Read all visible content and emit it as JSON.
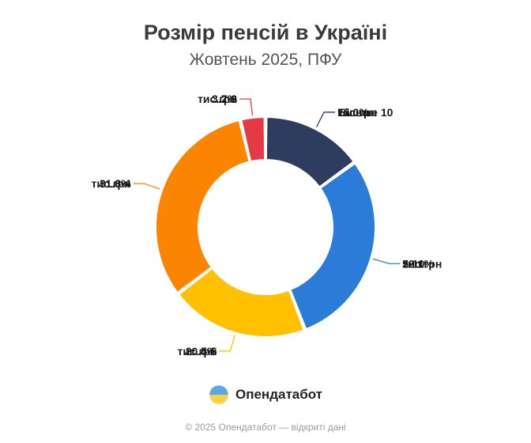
{
  "chart_data": {
    "type": "pie",
    "title": "Розмір пенсій в Україні",
    "subtitle": "Жовтень 2025, ПФУ",
    "slices": [
      {
        "label": "Більше 10",
        "value_label": "тис.грн",
        "percent": 15.0,
        "percent_label": "15.0%",
        "color": "#2e3d5f"
      },
      {
        "label": "5-10",
        "value_label": "тис.грн",
        "percent": 29.1,
        "percent_label": "29.1%",
        "color": "#2b7cd8"
      },
      {
        "label": "4-5",
        "value_label": "тис.грн",
        "percent": 20.5,
        "percent_label": "20.5%",
        "color": "#ffc000"
      },
      {
        "label": "3-4",
        "value_label": "тис.грн",
        "percent": 31.6,
        "percent_label": "31.6%",
        "color": "#fb8500"
      },
      {
        "label": "2-3",
        "value_label": "тис.грн",
        "percent": 3.7,
        "percent_label": "3.7%",
        "color": "#e63946"
      }
    ],
    "legend": "none"
  },
  "brand": {
    "name": "Опендатабот",
    "logo_icon": "opendatabot-logo-icon"
  },
  "footer": "© 2025 Опендатабот — відкриті дані"
}
